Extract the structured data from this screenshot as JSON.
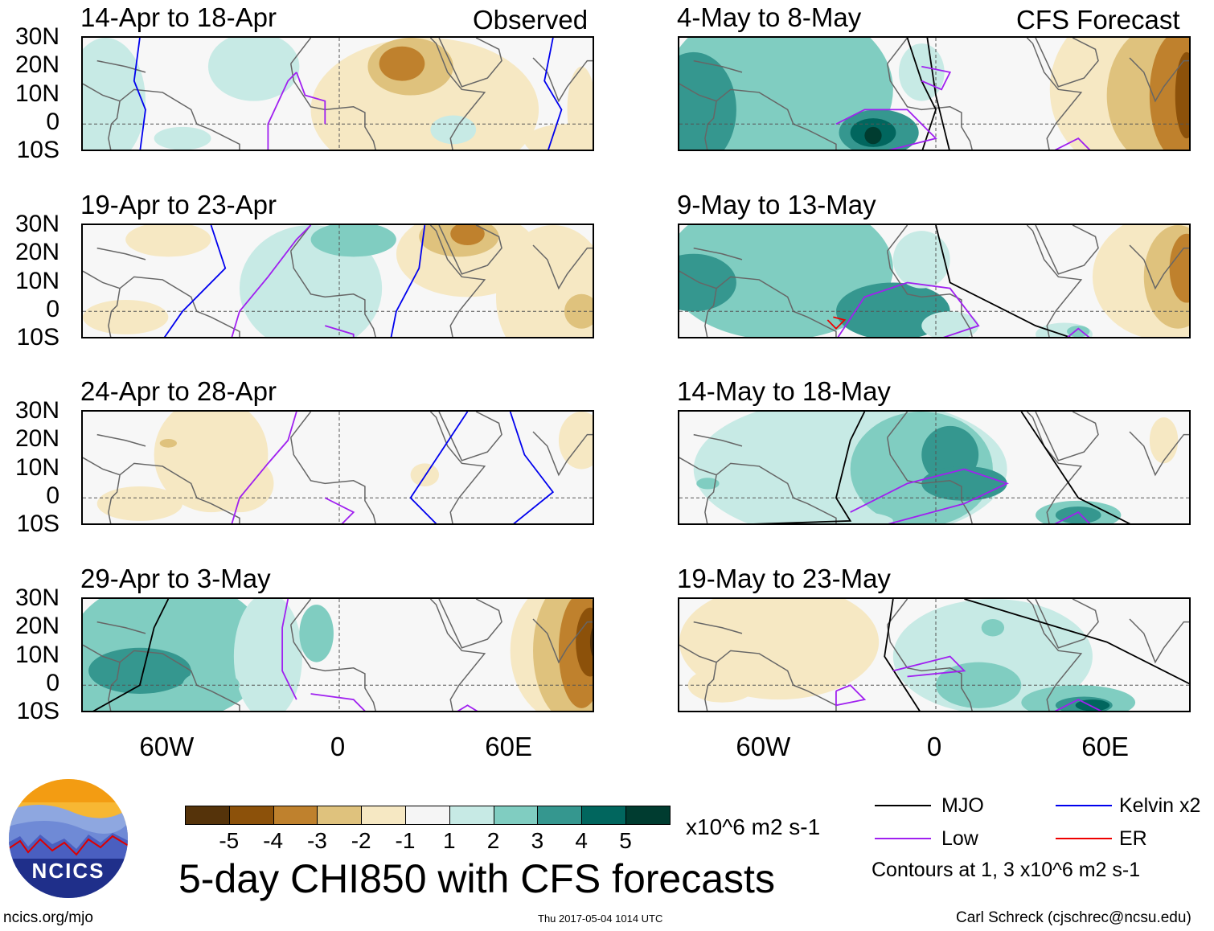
{
  "headers": {
    "left": "Observed",
    "right": "CFS Forecast"
  },
  "panels": [
    {
      "title": "14-Apr to 18-Apr"
    },
    {
      "title": "19-Apr to 23-Apr"
    },
    {
      "title": "24-Apr to 28-Apr"
    },
    {
      "title": "29-Apr to 3-May"
    },
    {
      "title": "4-May to 8-May"
    },
    {
      "title": "9-May to 13-May"
    },
    {
      "title": "14-May to 18-May"
    },
    {
      "title": "19-May to 23-May"
    }
  ],
  "lat_labels": [
    "30N",
    "20N",
    "10N",
    "0",
    "10S"
  ],
  "lon_labels": [
    "60W",
    "0",
    "60E"
  ],
  "colorbar": {
    "levels": [
      "-5",
      "-4",
      "-3",
      "-2",
      "-1",
      "1",
      "2",
      "3",
      "4",
      "5"
    ],
    "colors": [
      "#55330a",
      "#8c510a",
      "#bf812d",
      "#dfc27d",
      "#f6e8c3",
      "#f5f5f5",
      "#c7eae5",
      "#80cdc1",
      "#35978f",
      "#01665e",
      "#003c30"
    ],
    "units": "x10^6 m2 s-1"
  },
  "title": "5-day CHI850 with CFS forecasts",
  "legend": {
    "items": [
      {
        "label": "MJO",
        "color": "#000000"
      },
      {
        "label": "Kelvin x2",
        "color": "#0000ee"
      },
      {
        "label": "Low",
        "color": "#a020f0"
      },
      {
        "label": "ER",
        "color": "#ee0000"
      }
    ],
    "note": "Contours at 1, 3 x10^6 m2 s-1"
  },
  "logo": {
    "text": "NCICS"
  },
  "footer": {
    "url": "ncics.org/mjo",
    "timestamp": "Thu 2017-05-04 1014 UTC",
    "credit": "Carl Schreck (cjschrec@ncsu.edu)"
  }
}
